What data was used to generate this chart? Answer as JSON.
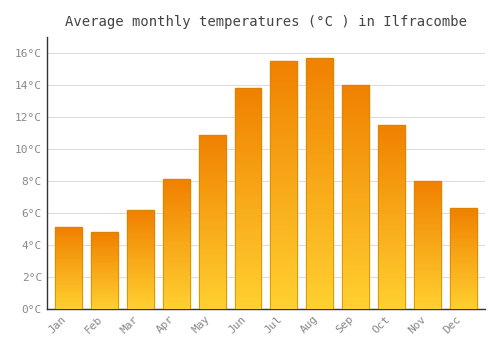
{
  "title": "Average monthly temperatures (°C ) in Ilfracombe",
  "months": [
    "Jan",
    "Feb",
    "Mar",
    "Apr",
    "May",
    "Jun",
    "Jul",
    "Aug",
    "Sep",
    "Oct",
    "Nov",
    "Dec"
  ],
  "temperatures": [
    5.1,
    4.8,
    6.2,
    8.1,
    10.9,
    13.8,
    15.5,
    15.7,
    14.0,
    11.5,
    8.0,
    6.3
  ],
  "bar_color_top": "#FFA500",
  "bar_color_bottom": "#E08800",
  "bar_highlight": "#FFD040",
  "background_color": "#FFFFFF",
  "grid_color": "#DDDDDD",
  "text_color": "#888888",
  "spine_color": "#333333",
  "ylim": [
    0,
    17
  ],
  "yticks": [
    0,
    2,
    4,
    6,
    8,
    10,
    12,
    14,
    16
  ],
  "title_fontsize": 10,
  "bar_width": 0.75
}
